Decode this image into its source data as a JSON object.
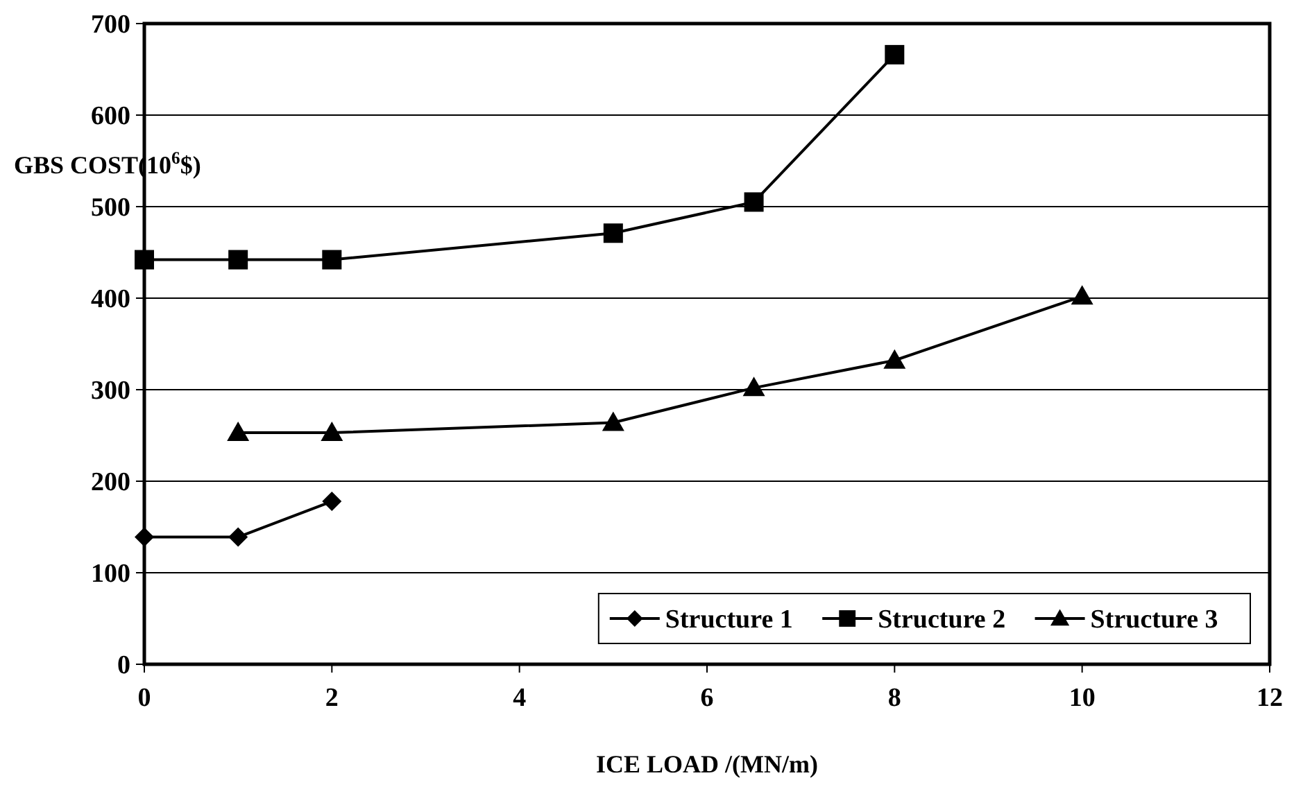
{
  "chart_data": {
    "type": "line",
    "xlabel": "ICE LOAD /(MN/m)",
    "ylabel": "GBS COST(10$^{6}$$)",
    "xlim": [
      0,
      12
    ],
    "xticks": [
      0,
      2,
      4,
      6,
      8,
      10,
      12
    ],
    "ylim": [
      0,
      700
    ],
    "yticks": [
      0,
      100,
      200,
      300,
      400,
      500,
      600,
      700
    ],
    "grid": "y",
    "legend": "bottom right",
    "series": [
      {
        "name": "Structure 1",
        "color": "#000000",
        "marker": "diamond",
        "x": [
          0,
          1,
          2
        ],
        "values": [
          139,
          139,
          178
        ]
      },
      {
        "name": "Structure 2",
        "color": "#000000",
        "marker": "square",
        "x": [
          0,
          1,
          2,
          5,
          6.5,
          8
        ],
        "values": [
          442,
          442,
          442,
          471,
          505,
          666
        ]
      },
      {
        "name": "Structure 3",
        "color": "#000000",
        "marker": "triangle",
        "x": [
          1,
          2,
          5,
          6.5,
          8,
          10
        ],
        "values": [
          253,
          253,
          264,
          302,
          332,
          402
        ]
      }
    ]
  }
}
